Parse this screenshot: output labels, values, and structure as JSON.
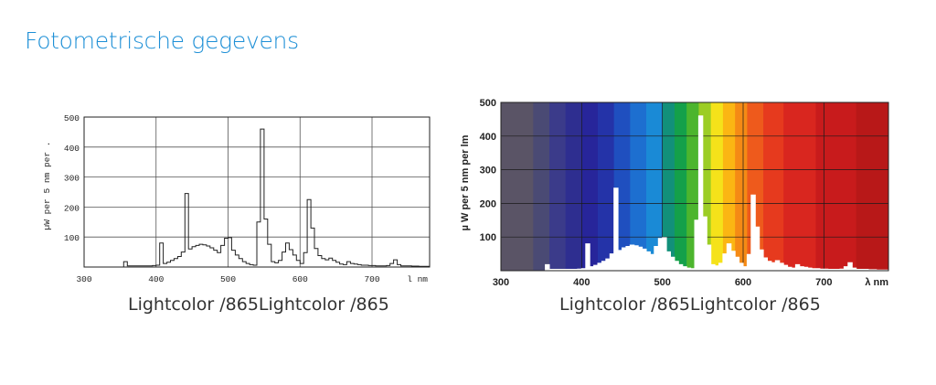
{
  "page": {
    "title": "Fotometrische gegevens"
  },
  "chart_data": [
    {
      "type": "line",
      "style": "monochrome",
      "ylabel": "µW per 5 nm per .",
      "xunit": "l nm",
      "caption": "Lightcolor /865Lightcolor /865",
      "xlim": [
        300,
        780
      ],
      "ylim": [
        0,
        500
      ],
      "xticks": [
        300,
        400,
        500,
        600,
        700
      ],
      "yticks": [
        100,
        200,
        300,
        400,
        500
      ],
      "grid": true,
      "x": [
        350,
        355,
        360,
        365,
        370,
        375,
        380,
        385,
        390,
        395,
        400,
        405,
        410,
        415,
        420,
        425,
        430,
        435,
        440,
        445,
        450,
        455,
        460,
        465,
        470,
        475,
        480,
        485,
        490,
        495,
        500,
        505,
        510,
        515,
        520,
        525,
        530,
        535,
        540,
        545,
        550,
        555,
        560,
        565,
        570,
        575,
        580,
        585,
        590,
        595,
        600,
        605,
        610,
        615,
        620,
        625,
        630,
        635,
        640,
        645,
        650,
        655,
        660,
        665,
        670,
        675,
        680,
        685,
        690,
        695,
        700,
        705,
        710,
        715,
        720,
        725,
        730,
        735,
        740,
        745,
        750,
        755,
        760,
        765,
        770,
        775
      ],
      "y": [
        0,
        18,
        4,
        4,
        4,
        4,
        4,
        4,
        4,
        5,
        6,
        80,
        12,
        16,
        22,
        28,
        35,
        50,
        245,
        60,
        68,
        72,
        76,
        74,
        70,
        64,
        56,
        48,
        72,
        96,
        98,
        56,
        40,
        28,
        18,
        12,
        8,
        6,
        150,
        460,
        160,
        76,
        18,
        14,
        22,
        50,
        80,
        58,
        40,
        22,
        12,
        48,
        225,
        130,
        62,
        38,
        28,
        24,
        30,
        22,
        16,
        10,
        8,
        18,
        12,
        10,
        8,
        6,
        6,
        5,
        5,
        4,
        4,
        4,
        5,
        12,
        24,
        8,
        4,
        4,
        4,
        3,
        3,
        2,
        2,
        2
      ]
    },
    {
      "type": "line",
      "style": "spectrum-fill",
      "ylabel": "µ W per 5 nm per lm",
      "xunit": "λ nm",
      "caption": "Lightcolor /865Lightcolor /865",
      "xlim": [
        300,
        780
      ],
      "ylim": [
        0,
        500
      ],
      "xticks": [
        300,
        400,
        500,
        600,
        700
      ],
      "yticks": [
        100,
        200,
        300,
        400,
        500
      ],
      "grid": true,
      "x": [
        350,
        355,
        360,
        365,
        370,
        375,
        380,
        385,
        390,
        395,
        400,
        405,
        410,
        415,
        420,
        425,
        430,
        435,
        440,
        445,
        450,
        455,
        460,
        465,
        470,
        475,
        480,
        485,
        490,
        495,
        500,
        505,
        510,
        515,
        520,
        525,
        530,
        535,
        540,
        545,
        550,
        555,
        560,
        565,
        570,
        575,
        580,
        585,
        590,
        595,
        600,
        605,
        610,
        615,
        620,
        625,
        630,
        635,
        640,
        645,
        650,
        655,
        660,
        665,
        670,
        675,
        680,
        685,
        690,
        695,
        700,
        705,
        710,
        715,
        720,
        725,
        730,
        735,
        740,
        745,
        750,
        755,
        760,
        765,
        770,
        775
      ],
      "y": [
        0,
        18,
        4,
        4,
        4,
        4,
        4,
        4,
        4,
        5,
        6,
        80,
        12,
        16,
        22,
        28,
        35,
        50,
        245,
        60,
        68,
        72,
        76,
        74,
        70,
        64,
        56,
        48,
        72,
        96,
        98,
        56,
        40,
        28,
        18,
        12,
        8,
        6,
        150,
        460,
        160,
        76,
        18,
        14,
        22,
        50,
        80,
        58,
        40,
        22,
        12,
        48,
        225,
        130,
        62,
        38,
        28,
        24,
        30,
        22,
        16,
        10,
        8,
        18,
        12,
        10,
        8,
        6,
        6,
        5,
        5,
        4,
        4,
        4,
        5,
        12,
        24,
        8,
        4,
        4,
        4,
        3,
        3,
        2,
        2,
        2
      ],
      "spectrum_bands": [
        {
          "from": 300,
          "to": 340,
          "color": "#5a5466"
        },
        {
          "from": 340,
          "to": 360,
          "color": "#4a4a74"
        },
        {
          "from": 360,
          "to": 380,
          "color": "#3b3b8a"
        },
        {
          "from": 380,
          "to": 400,
          "color": "#2e2e90"
        },
        {
          "from": 400,
          "to": 420,
          "color": "#27259a"
        },
        {
          "from": 420,
          "to": 440,
          "color": "#2433a8"
        },
        {
          "from": 440,
          "to": 460,
          "color": "#1f4fbf"
        },
        {
          "from": 460,
          "to": 480,
          "color": "#1d6fd0"
        },
        {
          "from": 480,
          "to": 500,
          "color": "#1a8ad6"
        },
        {
          "from": 500,
          "to": 515,
          "color": "#12907a"
        },
        {
          "from": 515,
          "to": 530,
          "color": "#14a04a"
        },
        {
          "from": 530,
          "to": 545,
          "color": "#4cb52e"
        },
        {
          "from": 545,
          "to": 560,
          "color": "#9ccd24"
        },
        {
          "from": 560,
          "to": 575,
          "color": "#f5e21a"
        },
        {
          "from": 575,
          "to": 590,
          "color": "#fbb613"
        },
        {
          "from": 590,
          "to": 605,
          "color": "#f58a15"
        },
        {
          "from": 605,
          "to": 625,
          "color": "#ee5a1c"
        },
        {
          "from": 625,
          "to": 650,
          "color": "#e63a1e"
        },
        {
          "from": 650,
          "to": 690,
          "color": "#d9261f"
        },
        {
          "from": 690,
          "to": 740,
          "color": "#c81b1c"
        },
        {
          "from": 740,
          "to": 780,
          "color": "#b81818"
        }
      ]
    }
  ]
}
